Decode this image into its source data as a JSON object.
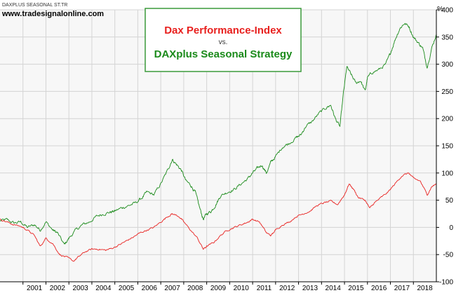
{
  "header": {
    "small_label": "DAXPLUS SEASONAL ST.TR",
    "website": "www.tradesignalonline.com"
  },
  "legend": {
    "line1": "Dax Performance-Index",
    "line2": "vs.",
    "line3": "DAXplus Seasonal Strategy"
  },
  "colors": {
    "dax": "#e8201e",
    "daxplus": "#1a8a1a",
    "legend_border": "#3a9a3a",
    "plot_bg": "#f7f7f7",
    "grid": "#d4d4d4"
  },
  "chart_data": {
    "type": "line",
    "y_unit": "%",
    "ylim": [
      -100,
      400
    ],
    "y_ticks": [
      "-100",
      "-50",
      "0",
      "50",
      "100",
      "150",
      "200",
      "250",
      "300",
      "350",
      "400"
    ],
    "x_ticks": [
      "2001",
      "2002",
      "2003",
      "2004",
      "2005",
      "2006",
      "2007",
      "2008",
      "2009",
      "2010",
      "2011",
      "2012",
      "2013",
      "2014",
      "2015",
      "2016",
      "2017",
      "2018"
    ],
    "xlim": [
      2000.0,
      2019.0
    ],
    "grid": true,
    "legend_position": "top-center",
    "series": [
      {
        "name": "DAXplus Seasonal Strategy",
        "color_key": "daxplus",
        "points": [
          [
            2000.0,
            12
          ],
          [
            2000.3,
            14
          ],
          [
            2000.6,
            8
          ],
          [
            2000.9,
            10
          ],
          [
            2001.2,
            0
          ],
          [
            2001.5,
            5
          ],
          [
            2001.75,
            -5
          ],
          [
            2002.0,
            10
          ],
          [
            2002.3,
            -5
          ],
          [
            2002.5,
            -10
          ],
          [
            2002.8,
            -32
          ],
          [
            2003.0,
            -20
          ],
          [
            2003.3,
            -5
          ],
          [
            2003.6,
            5
          ],
          [
            2003.9,
            10
          ],
          [
            2004.2,
            20
          ],
          [
            2004.5,
            25
          ],
          [
            2004.8,
            28
          ],
          [
            2005.0,
            30
          ],
          [
            2005.3,
            36
          ],
          [
            2005.6,
            40
          ],
          [
            2005.9,
            45
          ],
          [
            2006.2,
            55
          ],
          [
            2006.4,
            65
          ],
          [
            2006.7,
            60
          ],
          [
            2007.0,
            80
          ],
          [
            2007.3,
            105
          ],
          [
            2007.5,
            125
          ],
          [
            2007.7,
            115
          ],
          [
            2007.9,
            105
          ],
          [
            2008.1,
            85
          ],
          [
            2008.3,
            78
          ],
          [
            2008.5,
            65
          ],
          [
            2008.7,
            35
          ],
          [
            2008.85,
            15
          ],
          [
            2009.0,
            25
          ],
          [
            2009.2,
            30
          ],
          [
            2009.4,
            42
          ],
          [
            2009.6,
            58
          ],
          [
            2009.9,
            65
          ],
          [
            2010.2,
            70
          ],
          [
            2010.5,
            80
          ],
          [
            2010.8,
            90
          ],
          [
            2011.0,
            100
          ],
          [
            2011.2,
            108
          ],
          [
            2011.4,
            115
          ],
          [
            2011.6,
            100
          ],
          [
            2011.8,
            120
          ],
          [
            2012.0,
            130
          ],
          [
            2012.3,
            148
          ],
          [
            2012.6,
            155
          ],
          [
            2012.9,
            165
          ],
          [
            2013.1,
            170
          ],
          [
            2013.3,
            185
          ],
          [
            2013.6,
            195
          ],
          [
            2013.9,
            210
          ],
          [
            2014.2,
            220
          ],
          [
            2014.4,
            225
          ],
          [
            2014.6,
            200
          ],
          [
            2014.8,
            185
          ],
          [
            2014.95,
            245
          ],
          [
            2015.1,
            295
          ],
          [
            2015.3,
            280
          ],
          [
            2015.5,
            265
          ],
          [
            2015.7,
            270
          ],
          [
            2015.9,
            250
          ],
          [
            2016.0,
            275
          ],
          [
            2016.2,
            285
          ],
          [
            2016.5,
            290
          ],
          [
            2016.8,
            300
          ],
          [
            2017.0,
            320
          ],
          [
            2017.2,
            345
          ],
          [
            2017.4,
            365
          ],
          [
            2017.6,
            375
          ],
          [
            2017.8,
            370
          ],
          [
            2018.0,
            350
          ],
          [
            2018.2,
            340
          ],
          [
            2018.4,
            330
          ],
          [
            2018.6,
            295
          ],
          [
            2018.8,
            330
          ],
          [
            2019.0,
            355
          ]
        ]
      },
      {
        "name": "Dax Performance-Index",
        "color_key": "dax",
        "points": [
          [
            2000.0,
            15
          ],
          [
            2000.3,
            10
          ],
          [
            2000.6,
            5
          ],
          [
            2000.9,
            2
          ],
          [
            2001.2,
            -5
          ],
          [
            2001.5,
            -15
          ],
          [
            2001.75,
            -35
          ],
          [
            2002.0,
            -20
          ],
          [
            2002.3,
            -30
          ],
          [
            2002.6,
            -50
          ],
          [
            2002.9,
            -55
          ],
          [
            2003.2,
            -62
          ],
          [
            2003.4,
            -55
          ],
          [
            2003.7,
            -45
          ],
          [
            2004.0,
            -40
          ],
          [
            2004.3,
            -40
          ],
          [
            2004.6,
            -42
          ],
          [
            2004.9,
            -38
          ],
          [
            2005.2,
            -32
          ],
          [
            2005.5,
            -25
          ],
          [
            2005.8,
            -18
          ],
          [
            2006.1,
            -10
          ],
          [
            2006.4,
            -5
          ],
          [
            2006.7,
            0
          ],
          [
            2007.0,
            10
          ],
          [
            2007.3,
            20
          ],
          [
            2007.5,
            25
          ],
          [
            2007.8,
            20
          ],
          [
            2008.0,
            10
          ],
          [
            2008.3,
            -5
          ],
          [
            2008.6,
            -20
          ],
          [
            2008.85,
            -40
          ],
          [
            2009.0,
            -35
          ],
          [
            2009.3,
            -28
          ],
          [
            2009.6,
            -15
          ],
          [
            2009.9,
            -5
          ],
          [
            2010.2,
            0
          ],
          [
            2010.5,
            5
          ],
          [
            2010.8,
            10
          ],
          [
            2011.0,
            15
          ],
          [
            2011.3,
            10
          ],
          [
            2011.6,
            -10
          ],
          [
            2011.8,
            -15
          ],
          [
            2012.0,
            -5
          ],
          [
            2012.3,
            5
          ],
          [
            2012.6,
            10
          ],
          [
            2012.9,
            20
          ],
          [
            2013.2,
            25
          ],
          [
            2013.5,
            30
          ],
          [
            2013.8,
            40
          ],
          [
            2014.1,
            45
          ],
          [
            2014.4,
            48
          ],
          [
            2014.7,
            42
          ],
          [
            2015.0,
            60
          ],
          [
            2015.2,
            80
          ],
          [
            2015.4,
            70
          ],
          [
            2015.6,
            55
          ],
          [
            2015.9,
            50
          ],
          [
            2016.1,
            35
          ],
          [
            2016.3,
            45
          ],
          [
            2016.6,
            55
          ],
          [
            2016.9,
            65
          ],
          [
            2017.2,
            80
          ],
          [
            2017.5,
            95
          ],
          [
            2017.8,
            100
          ],
          [
            2018.0,
            90
          ],
          [
            2018.3,
            85
          ],
          [
            2018.6,
            60
          ],
          [
            2018.8,
            75
          ],
          [
            2019.0,
            80
          ]
        ]
      }
    ]
  }
}
